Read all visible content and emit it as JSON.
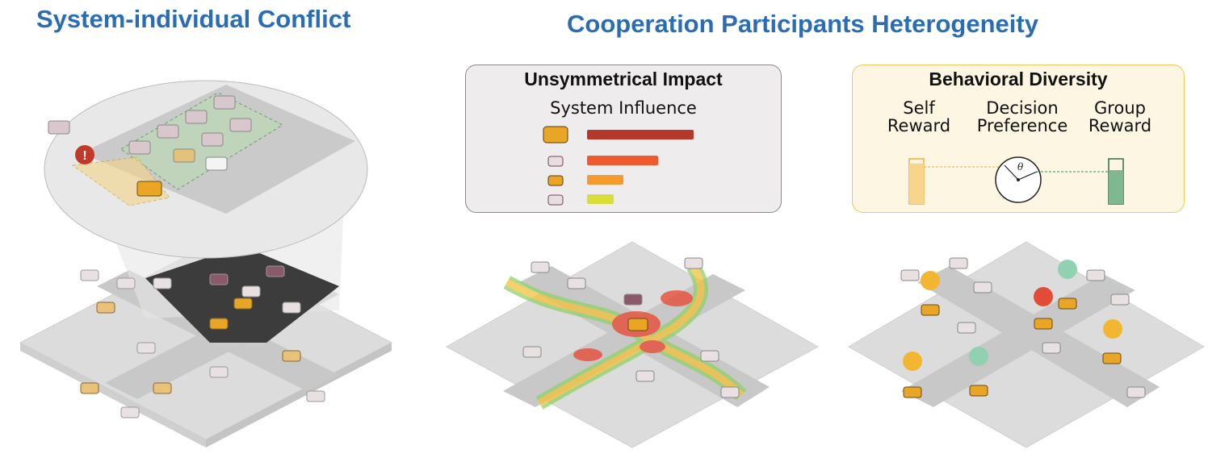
{
  "titles": {
    "left": "System-individual Conflict",
    "right": "Cooperation Participants Heterogeneity"
  },
  "impact_panel": {
    "title": "Unsymmetrical Impact",
    "subtitle": "System Influence",
    "bars": [
      {
        "value": 1.0,
        "color": "#b5392b"
      },
      {
        "value": 0.67,
        "color": "#ec5a2e"
      },
      {
        "value": 0.34,
        "color": "#f59a2e"
      },
      {
        "value": 0.25,
        "color": "#d9dd3a"
      }
    ]
  },
  "diversity_panel": {
    "title": "Behavioral Diversity",
    "self_reward": {
      "line1": "Self",
      "line2": "Reward"
    },
    "decision_preference": {
      "line1": "Decision",
      "line2": "Preference"
    },
    "group_reward": {
      "line1": "Group",
      "line2": "Reward"
    },
    "theta": "θ",
    "self_fill": 0.9,
    "group_fill": 0.75,
    "colors": {
      "self": "#f7d58c",
      "group": "#3f8f5a"
    }
  },
  "colors": {
    "title": "#2a6db5",
    "alert": "#c0392b",
    "car_yellow": "#e8a526"
  }
}
